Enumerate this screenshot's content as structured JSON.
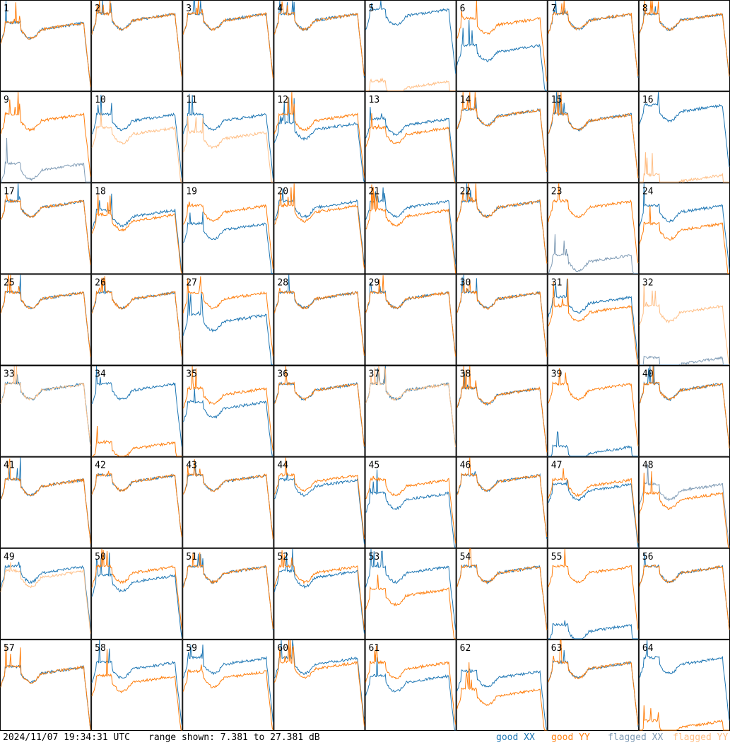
{
  "footer": {
    "timestamp": "2024/11/07 19:34:31 UTC",
    "range_text": "range shown: 7.381 to 27.381 dB",
    "legend": [
      {
        "label": "good XX",
        "color": "#1f77b4"
      },
      {
        "label": "good YY",
        "color": "#ff7f0e"
      },
      {
        "label": "flagged XX",
        "color": "#7f9bb5"
      },
      {
        "label": "flagged YY",
        "color": "#ffbf86"
      }
    ]
  },
  "chart_data": {
    "type": "line",
    "panels": 64,
    "columns": 8,
    "rows": 8,
    "panel_labels": [
      "1",
      "2",
      "3",
      "4",
      "5",
      "6",
      "7",
      "8",
      "9",
      "10",
      "11",
      "12",
      "13",
      "14",
      "15",
      "16",
      "17",
      "18",
      "19",
      "20",
      "21",
      "22",
      "23",
      "24",
      "25",
      "26",
      "27",
      "28",
      "29",
      "30",
      "31",
      "32",
      "33",
      "34",
      "35",
      "36",
      "37",
      "38",
      "39",
      "40",
      "41",
      "42",
      "43",
      "44",
      "45",
      "46",
      "47",
      "48",
      "49",
      "50",
      "51",
      "52",
      "53",
      "54",
      "55",
      "56",
      "57",
      "58",
      "59",
      "60",
      "61",
      "62",
      "63",
      "64"
    ],
    "ylim": [
      7.381,
      27.381
    ],
    "y_unit": "dB",
    "colors": {
      "good_xx": "#1f77b4",
      "good_yy": "#ff7f0e",
      "flagged_xx": "#7f9bb5",
      "flagged_yy": "#ffbf86"
    },
    "series": [
      {
        "name": "good XX"
      },
      {
        "name": "good YY"
      },
      {
        "name": "flagged XX"
      },
      {
        "name": "flagged YY"
      }
    ],
    "flag_status": {
      "xx": [
        "g",
        "g",
        "g",
        "g",
        "g",
        "g",
        "g",
        "g",
        "f",
        "g",
        "g",
        "g",
        "g",
        "g",
        "g",
        "g",
        "g",
        "g",
        "g",
        "g",
        "g",
        "g",
        "f",
        "g",
        "g",
        "g",
        "g",
        "g",
        "g",
        "g",
        "g",
        "f",
        "g",
        "g",
        "g",
        "g",
        "g",
        "g",
        "g",
        "g",
        "g",
        "g",
        "g",
        "g",
        "g",
        "g",
        "g",
        "f",
        "g",
        "g",
        "g",
        "g",
        "g",
        "g",
        "g",
        "g",
        "g",
        "g",
        "g",
        "g",
        "g",
        "g",
        "g",
        "g"
      ],
      "yy": [
        "g",
        "g",
        "g",
        "g",
        "f",
        "g",
        "g",
        "g",
        "g",
        "f",
        "f",
        "g",
        "g",
        "g",
        "g",
        "f",
        "g",
        "g",
        "g",
        "g",
        "g",
        "g",
        "g",
        "g",
        "g",
        "g",
        "g",
        "g",
        "g",
        "g",
        "g",
        "f",
        "f",
        "g",
        "g",
        "g",
        "f",
        "g",
        "g",
        "g",
        "g",
        "g",
        "g",
        "g",
        "g",
        "g",
        "g",
        "g",
        "f",
        "g",
        "g",
        "g",
        "g",
        "g",
        "g",
        "g",
        "g",
        "g",
        "g",
        "g",
        "g",
        "g",
        "g",
        "g"
      ]
    },
    "profile_levels": {
      "xx": [
        21,
        23,
        23,
        23,
        24,
        16,
        23,
        23,
        10,
        21,
        21,
        19,
        20,
        22,
        21,
        23,
        22,
        20,
        17,
        22,
        22,
        22,
        10,
        21,
        22,
        22,
        17,
        22,
        22,
        22,
        21,
        7.5,
        22,
        22,
        18,
        22,
        22,
        21,
        8,
        22,
        21,
        22,
        22,
        21,
        18,
        22,
        20,
        20,
        22,
        20,
        22,
        21,
        22,
        22,
        9,
        22,
        20,
        21,
        22,
        22,
        18,
        19,
        21,
        22
      ],
      "yy": [
        21,
        23,
        23,
        23,
        8,
        22,
        23,
        23,
        21,
        18,
        17,
        21,
        18,
        22,
        21,
        7.5,
        22,
        19,
        21,
        21,
        20,
        22,
        22,
        17,
        22,
        22,
        22,
        22,
        22,
        22,
        19,
        19,
        22,
        9,
        21,
        22,
        22,
        21,
        22,
        22,
        21,
        22,
        22,
        22,
        21,
        22,
        21,
        18,
        21,
        22,
        22,
        22,
        17,
        22,
        22,
        22,
        20,
        18,
        19,
        21,
        21,
        15,
        21,
        8
      ]
    }
  }
}
